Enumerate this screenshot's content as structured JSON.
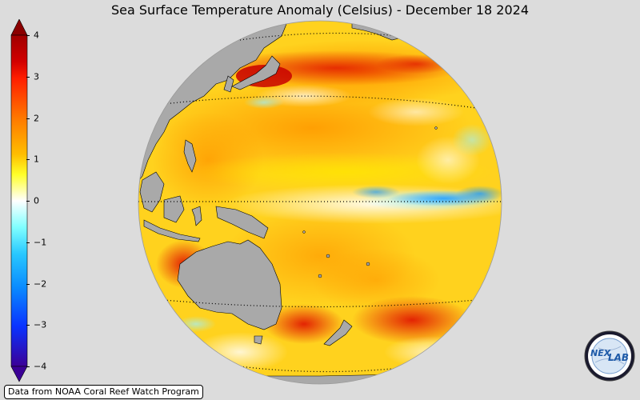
{
  "title": "Sea Surface Temperature Anomaly (Celsius) - December 18 2024",
  "credit": "Data from NOAA Coral Reef Watch Program",
  "logo": {
    "text_left": "NEX",
    "text_right": "LAB"
  },
  "colorbar": {
    "min": -4,
    "max": 4,
    "extend": "both",
    "ticks": [
      {
        "value": 4,
        "label": "4"
      },
      {
        "value": 3,
        "label": "3"
      },
      {
        "value": 2,
        "label": "2"
      },
      {
        "value": 1,
        "label": "1"
      },
      {
        "value": 0,
        "label": "0"
      },
      {
        "value": -1,
        "label": "−1"
      },
      {
        "value": -2,
        "label": "−2"
      },
      {
        "value": -3,
        "label": "−3"
      },
      {
        "value": -4,
        "label": "−4"
      }
    ],
    "colors": [
      "#3b0096",
      "#0a3cff",
      "#0a9bff",
      "#50e6ff",
      "#ffffff",
      "#ffff28",
      "#ffaa00",
      "#ff3c00",
      "#a00000"
    ]
  },
  "map": {
    "projection": "orthographic",
    "center": "Pacific Ocean",
    "land_color": "#a9a9a9",
    "background_color": "#dcdcdc"
  }
}
